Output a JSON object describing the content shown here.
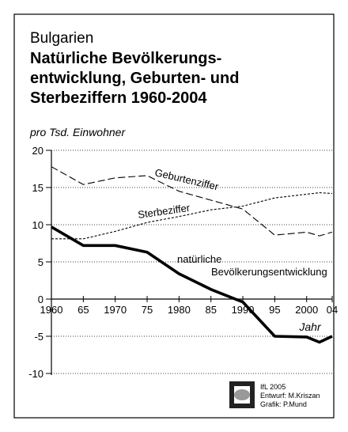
{
  "chart_data": {
    "type": "line",
    "subtitle": "Bulgarien",
    "title": [
      "Natürliche Bevölkerungs-",
      "entwicklung, Geburten- und",
      "Sterbeziffern 1960-2004"
    ],
    "y_label": "pro Tsd. Einwohner",
    "x_label": "Jahr",
    "x": [
      1960,
      1965,
      1970,
      1975,
      1980,
      1985,
      1990,
      1995,
      2000,
      2002,
      2004
    ],
    "series": [
      {
        "name": "Geburtenziffer",
        "color": "#000000",
        "style": "dashed",
        "values": [
          17.8,
          15.4,
          16.3,
          16.6,
          14.5,
          13.3,
          12.1,
          8.6,
          9.0,
          8.5,
          9.0
        ]
      },
      {
        "name": "Sterbeziffer",
        "color": "#000000",
        "style": "dotted",
        "values": [
          8.1,
          8.1,
          9.1,
          10.3,
          11.1,
          12.0,
          12.5,
          13.6,
          14.1,
          14.3,
          14.2
        ]
      },
      {
        "name": "natürliche Bevölkerungsentwicklung",
        "color": "#000000",
        "style": "solid",
        "values": [
          9.7,
          7.2,
          7.2,
          6.3,
          3.4,
          1.3,
          -0.4,
          -5.0,
          -5.1,
          -5.8,
          -5.0
        ]
      }
    ],
    "xlim": [
      1960,
      2004
    ],
    "xticks": [
      1960,
      {
        "value": 1965,
        "label": "65"
      },
      1970,
      {
        "value": 1975,
        "label": "75"
      },
      1980,
      {
        "value": 1985,
        "label": "85"
      },
      1990,
      {
        "value": 1995,
        "label": "95"
      },
      2000,
      {
        "value": 2004,
        "label": "04"
      }
    ],
    "ylim": [
      -10,
      20
    ],
    "yticks": [
      20,
      15,
      10,
      5,
      0,
      -5,
      -10
    ],
    "grid": true,
    "credits": [
      "IfL 2005",
      "Entwurf: M.Kriszan",
      "Grafik: P.Mund"
    ]
  }
}
